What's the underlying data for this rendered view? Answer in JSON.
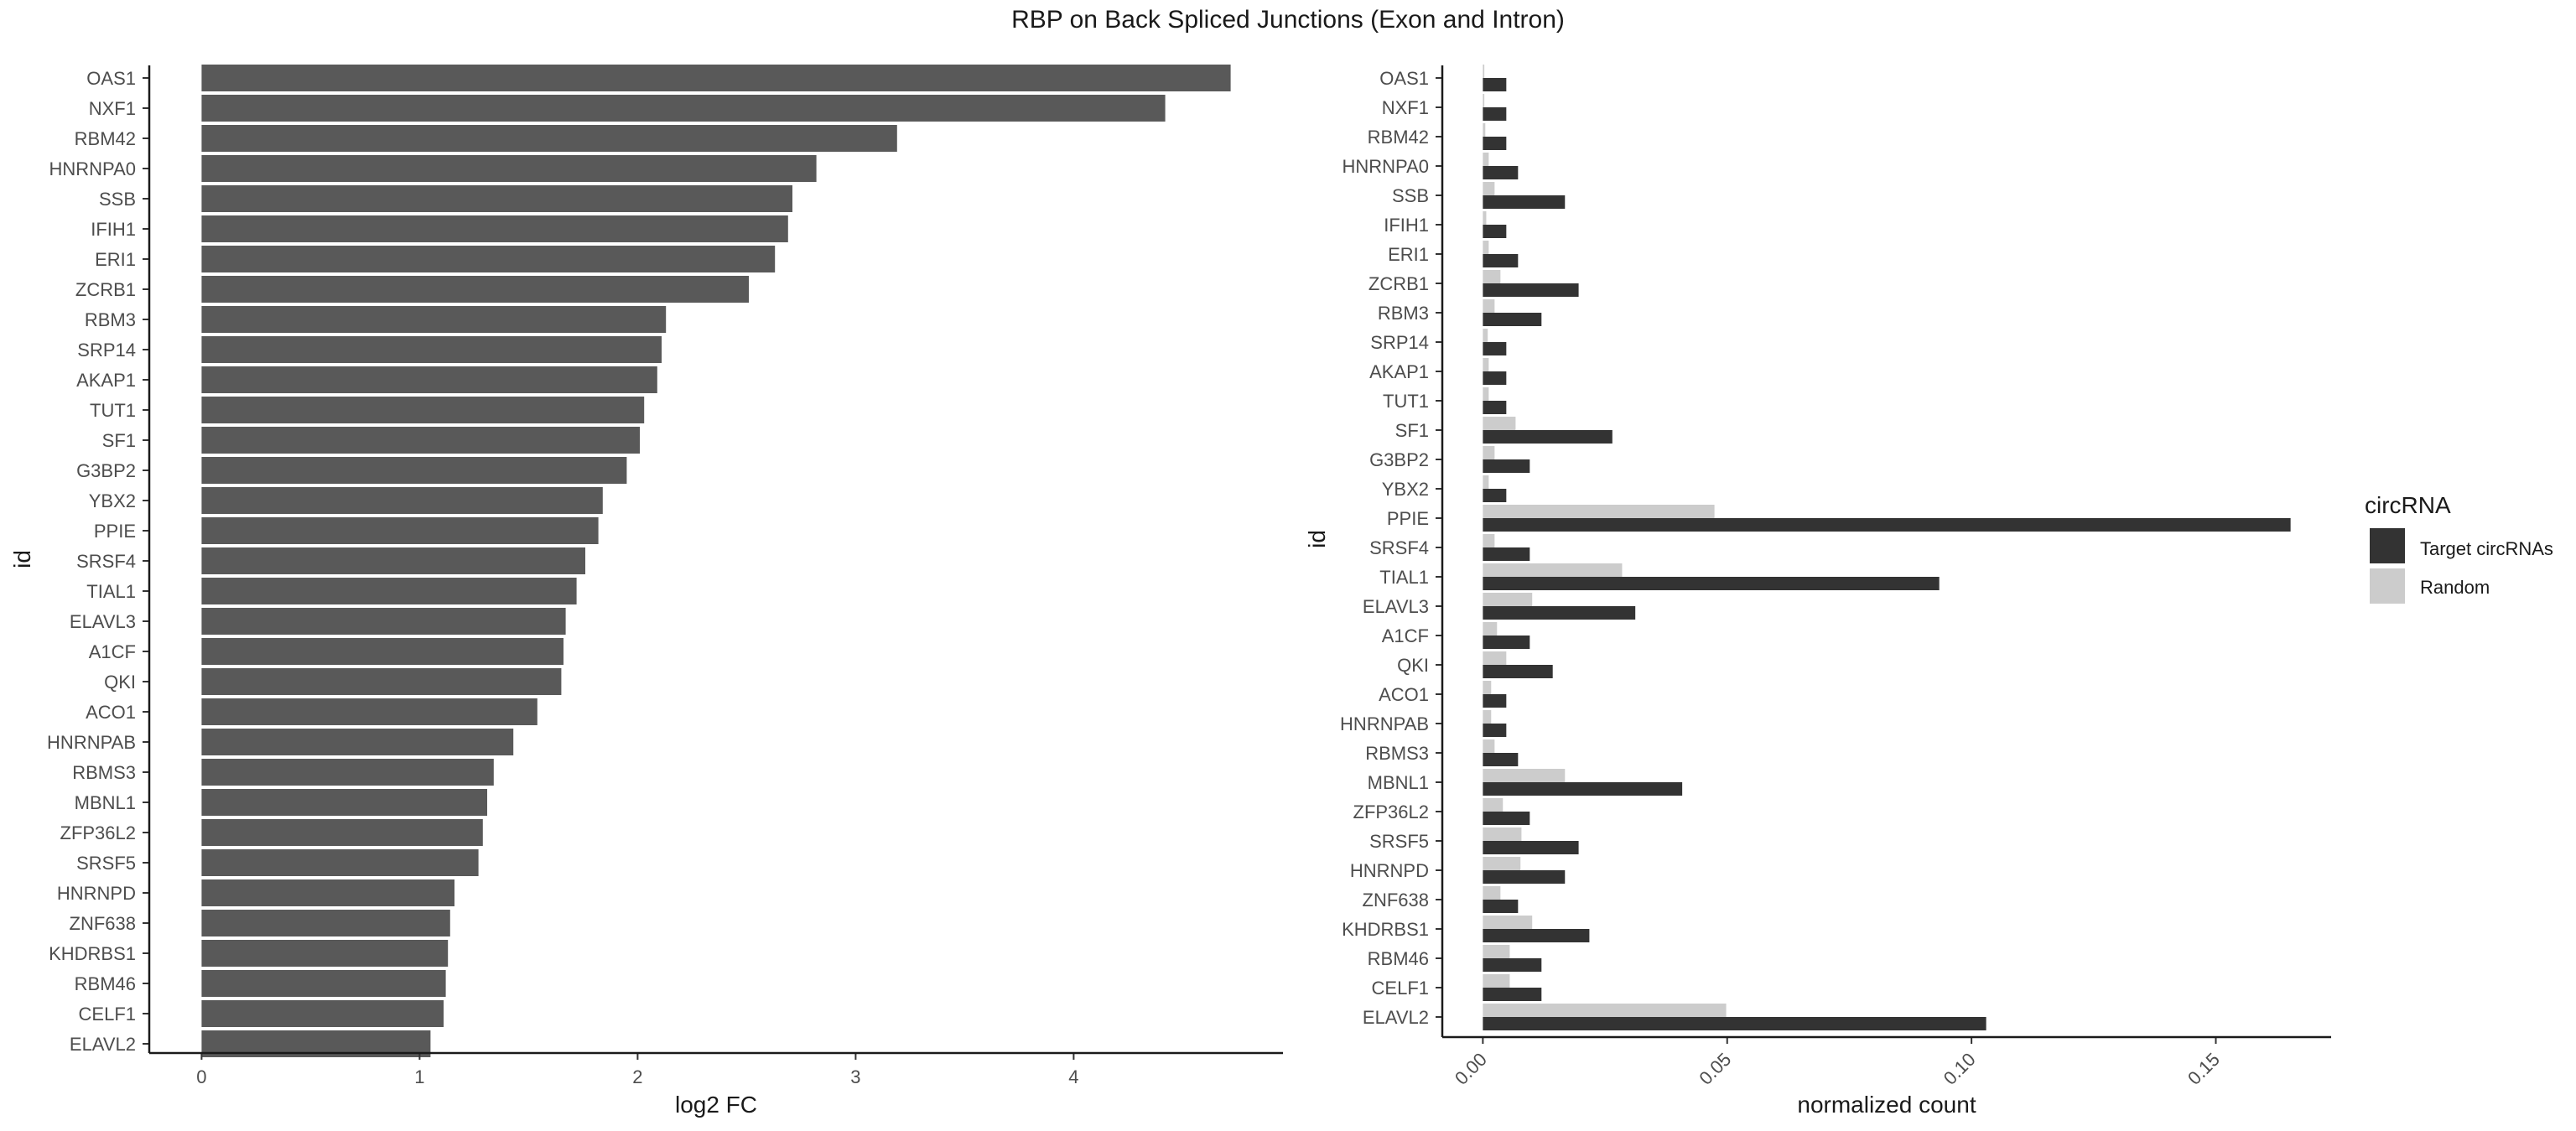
{
  "title": "RBP on Back Spliced Junctions (Exon and Intron)",
  "chart_data": [
    {
      "type": "bar",
      "orientation": "horizontal",
      "categories": [
        "OAS1",
        "NXF1",
        "RBM42",
        "HNRNPA0",
        "SSB",
        "IFIH1",
        "ERI1",
        "ZCRB1",
        "RBM3",
        "SRP14",
        "AKAP1",
        "TUT1",
        "SF1",
        "G3BP2",
        "YBX2",
        "PPIE",
        "SRSF4",
        "TIAL1",
        "ELAVL3",
        "A1CF",
        "QKI",
        "ACO1",
        "HNRNPAB",
        "RBMS3",
        "MBNL1",
        "ZFP36L2",
        "SRSF5",
        "HNRNPD",
        "ZNF638",
        "KHDRBS1",
        "RBM46",
        "CELF1",
        "ELAVL2"
      ],
      "values": [
        4.72,
        4.42,
        3.19,
        2.82,
        2.71,
        2.69,
        2.63,
        2.51,
        2.13,
        2.11,
        2.09,
        2.03,
        2.01,
        1.95,
        1.84,
        1.82,
        1.76,
        1.72,
        1.67,
        1.66,
        1.65,
        1.54,
        1.43,
        1.34,
        1.31,
        1.29,
        1.27,
        1.16,
        1.14,
        1.13,
        1.12,
        1.11,
        1.05
      ],
      "xlabel": "log2 FC",
      "ylabel": "id",
      "xlim": [
        -0.24,
        4.96
      ],
      "xticks": [
        "0",
        "1",
        "2",
        "3",
        "4"
      ],
      "color": "#595959",
      "grid": false
    },
    {
      "type": "bar",
      "orientation": "horizontal",
      "categories": [
        "OAS1",
        "NXF1",
        "RBM42",
        "HNRNPA0",
        "SSB",
        "IFIH1",
        "ERI1",
        "ZCRB1",
        "RBM3",
        "SRP14",
        "AKAP1",
        "TUT1",
        "SF1",
        "G3BP2",
        "YBX2",
        "PPIE",
        "SRSF4",
        "TIAL1",
        "ELAVL3",
        "A1CF",
        "QKI",
        "ACO1",
        "HNRNPAB",
        "RBMS3",
        "MBNL1",
        "ZFP36L2",
        "SRSF5",
        "HNRNPD",
        "ZNF638",
        "KHDRBS1",
        "RBM46",
        "CELF1",
        "ELAVL2"
      ],
      "series": [
        {
          "name": "Target circRNAs",
          "color": "#333333",
          "values": [
            0.0048,
            0.0048,
            0.0048,
            0.0072,
            0.0168,
            0.0048,
            0.0072,
            0.0196,
            0.012,
            0.0048,
            0.0048,
            0.0048,
            0.0265,
            0.0096,
            0.0048,
            0.1653,
            0.0096,
            0.0934,
            0.0312,
            0.0096,
            0.0143,
            0.0048,
            0.0048,
            0.0072,
            0.0408,
            0.0096,
            0.0196,
            0.0168,
            0.0072,
            0.0218,
            0.012,
            0.012,
            0.103
          ]
        },
        {
          "name": "Random",
          "color": "#cccccc",
          "values": [
            0.0003,
            0.0003,
            0.0005,
            0.0012,
            0.0024,
            0.0007,
            0.0012,
            0.0036,
            0.0024,
            0.001,
            0.0012,
            0.0012,
            0.0067,
            0.0024,
            0.0012,
            0.0474,
            0.0024,
            0.0285,
            0.0101,
            0.0029,
            0.0048,
            0.0017,
            0.0017,
            0.0024,
            0.0168,
            0.0041,
            0.0079,
            0.0077,
            0.0036,
            0.0101,
            0.0055,
            0.0055,
            0.0498
          ]
        }
      ],
      "xlabel": "normalized count",
      "ylabel": "id",
      "xlim": [
        -0.0083,
        0.1736
      ],
      "xtick_values": [
        0,
        0.05,
        0.1,
        0.15
      ],
      "xticks": [
        "0.00",
        "0.05",
        "0.10",
        "0.15"
      ],
      "legend_title": "circRNA",
      "legend_position": "right",
      "grid": false
    }
  ]
}
